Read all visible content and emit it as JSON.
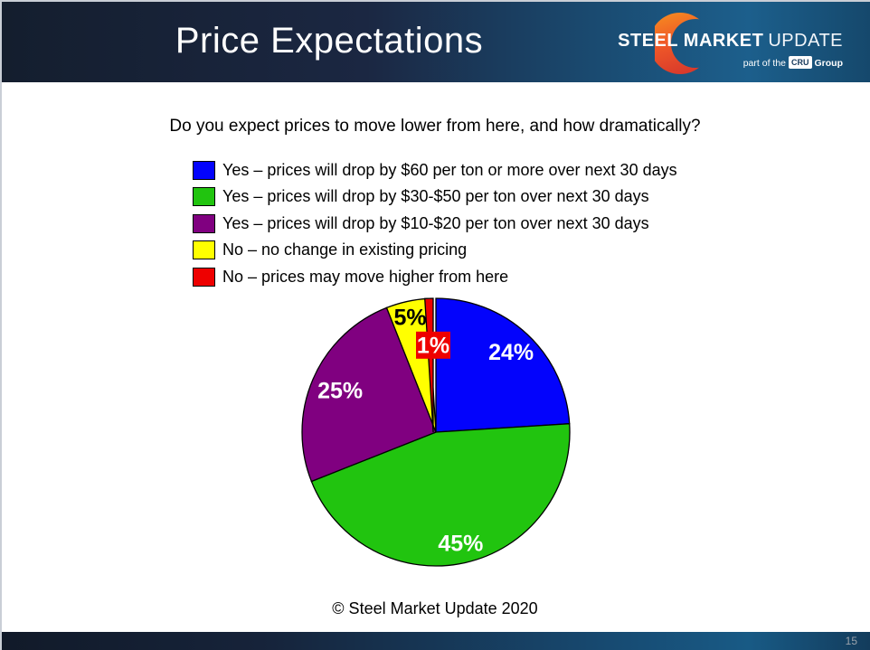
{
  "header": {
    "title": "Price Expectations",
    "logo": {
      "brand_bold": "STEEL MARKET",
      "brand_light": "UPDATE",
      "tagline_prefix": "part of the",
      "badge": "CRU",
      "tagline_suffix": "Group"
    }
  },
  "question": "Do you expect prices to move lower from here, and how dramatically?",
  "legend": {
    "items": [
      {
        "label": "Yes – prices will drop by $60 per ton or more over next 30 days",
        "color": "#0303FC"
      },
      {
        "label": "Yes – prices will drop by $30-$50 per ton over next 30 days",
        "color": "#21C40F"
      },
      {
        "label": "Yes – prices will drop by $10-$20 per ton over next 30 days",
        "color": "#800080"
      },
      {
        "label": "No – no change in existing pricing",
        "color": "#FFFF00"
      },
      {
        "label": "No – prices may move higher from here",
        "color": "#EE0000"
      }
    ]
  },
  "chart_data": {
    "type": "pie",
    "title": "Do you expect prices to move lower from here, and how dramatically?",
    "categories": [
      "Yes – prices will drop by $60 per ton or more over next 30 days",
      "Yes – prices will drop by $30-$50 per ton over next 30 days",
      "Yes – prices will drop by $10-$20 per ton over next 30 days",
      "No – no change in existing pricing",
      "No – prices may move higher from here"
    ],
    "values": [
      24,
      45,
      25,
      5,
      1
    ],
    "labels": [
      "24%",
      "45%",
      "25%",
      "5%",
      "1%"
    ],
    "colors": [
      "#0303FC",
      "#21C40F",
      "#800080",
      "#FFFF00",
      "#EE0000"
    ],
    "label_text_colors": [
      "#FFFFFF",
      "#FFFFFF",
      "#FFFFFF",
      "#000000",
      "#FFFFFF"
    ],
    "start_angle_deg": 0,
    "direction": "clockwise",
    "legend_position": "top",
    "slice_outline_color": "#000000"
  },
  "footer": {
    "copyright": "© Steel Market Update 2020",
    "page_number": "15"
  }
}
